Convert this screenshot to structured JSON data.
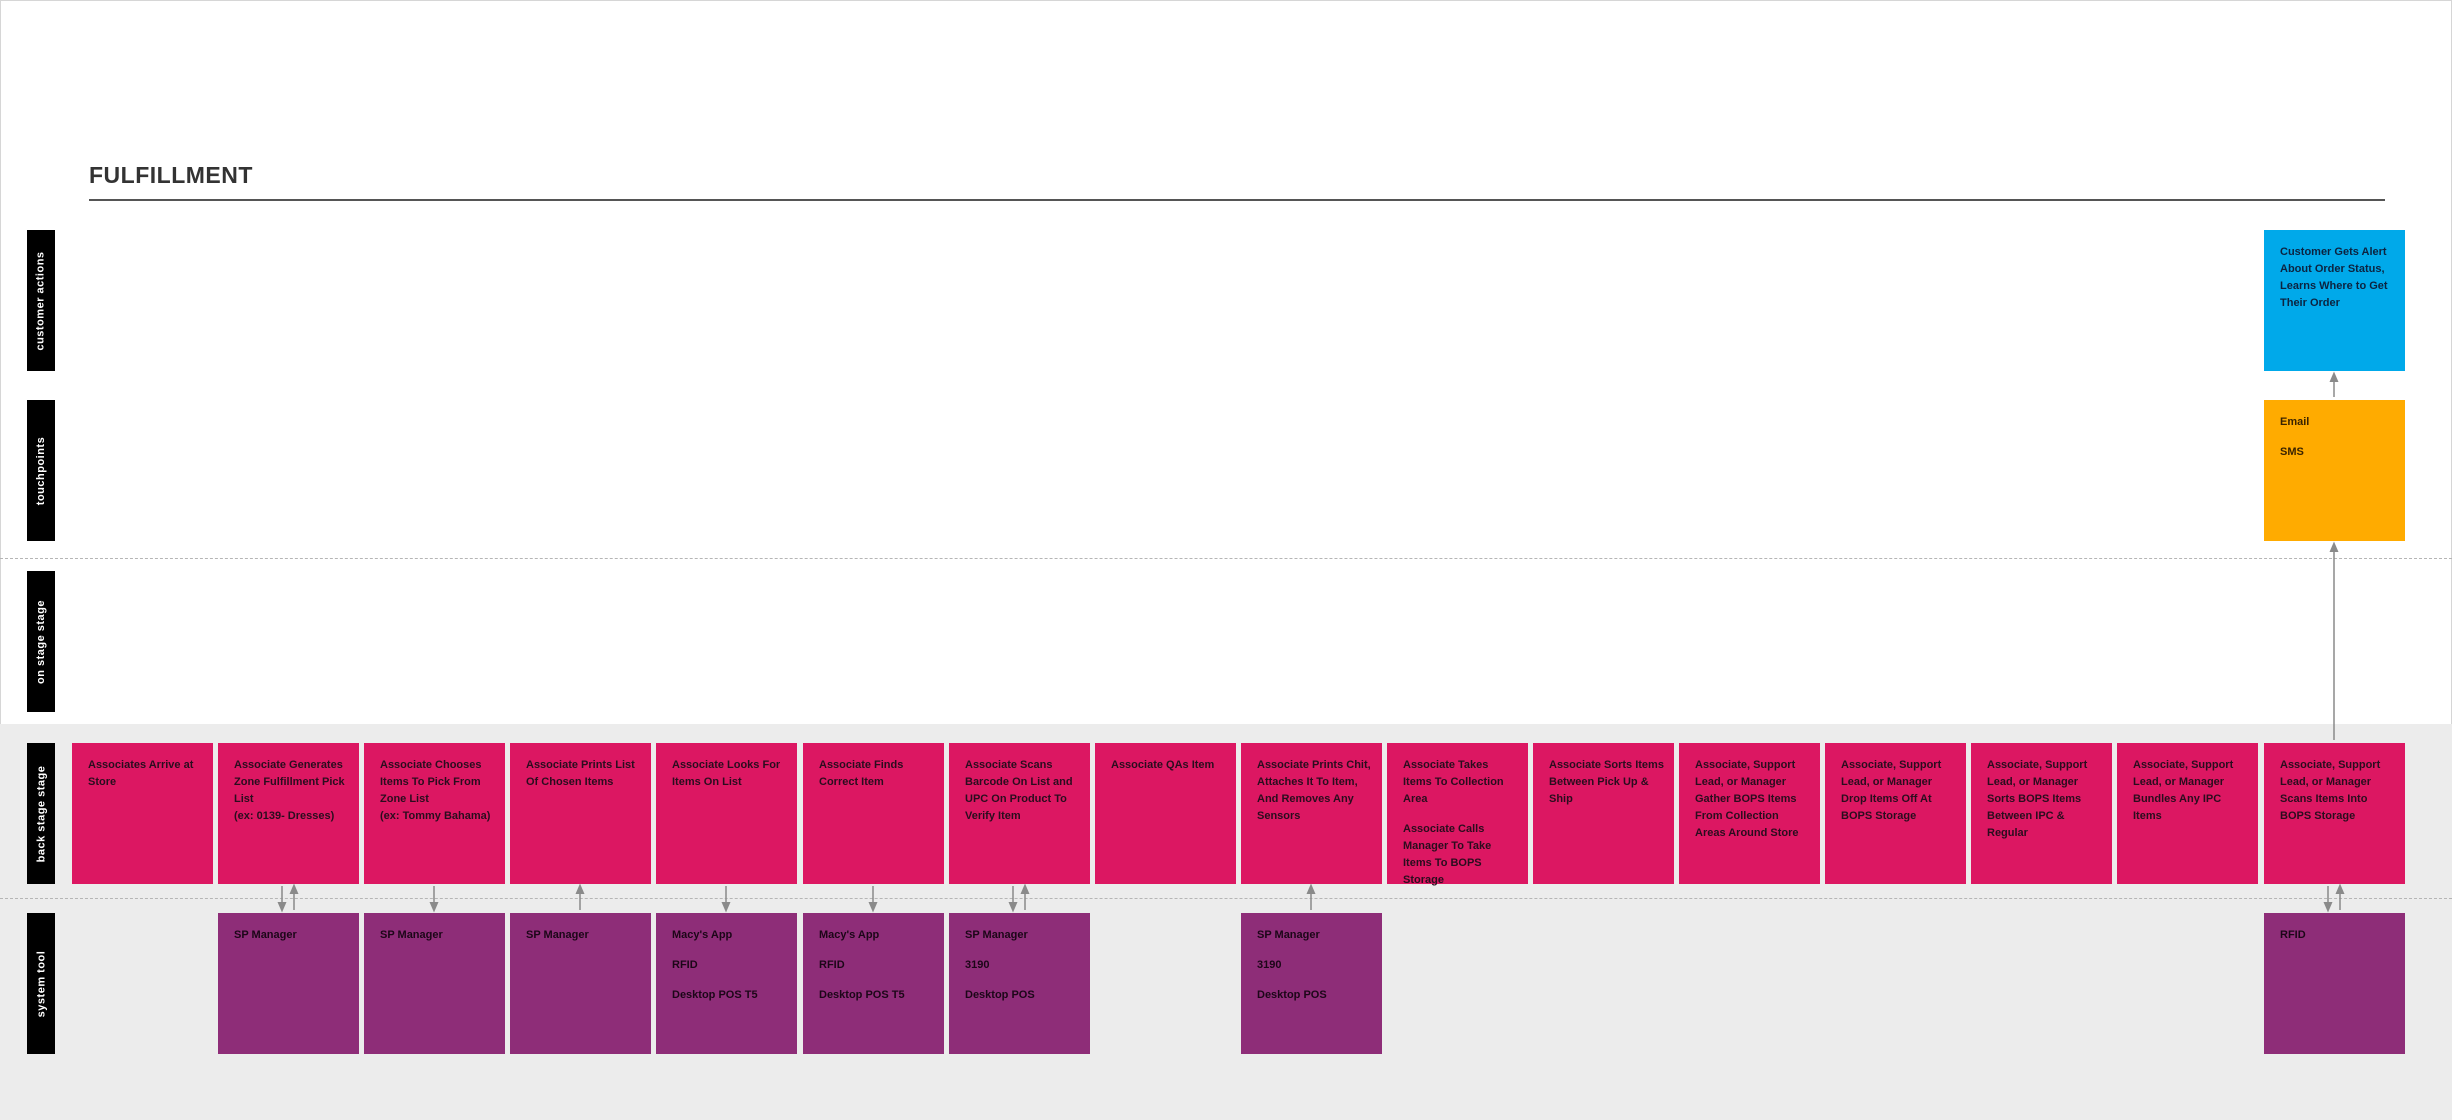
{
  "title": "FULFILLMENT",
  "lanes": [
    "customer actions",
    "touchpoints",
    "on stage stage",
    "back stage stage",
    "system tool"
  ],
  "colors": {
    "back_stage": "#dc1762",
    "system_tool": "#8e2d78",
    "customer_action": "#00a9ea",
    "touchpoint": "#ffab00"
  },
  "customer_actions": [
    {
      "column": 16,
      "lines": [
        "Customer Gets Alert About Order Status, Learns Where to Get Their Order"
      ]
    }
  ],
  "touchpoints": [
    {
      "column": 16,
      "lines": [
        "Email",
        "SMS"
      ]
    }
  ],
  "back_stage": [
    {
      "lines": [
        "Associates Arrive at Store"
      ]
    },
    {
      "lines": [
        "Associate Generates Zone Fulfillment Pick List\n(ex: 0139- Dresses)"
      ]
    },
    {
      "lines": [
        "Associate Chooses Items To Pick From Zone List\n(ex: Tommy Bahama)"
      ]
    },
    {
      "lines": [
        "Associate Prints List Of Chosen Items"
      ]
    },
    {
      "lines": [
        "Associate Looks For Items On List"
      ]
    },
    {
      "lines": [
        "Associate Finds Correct Item"
      ]
    },
    {
      "lines": [
        "Associate Scans Barcode On List and UPC On Product To Verify Item"
      ]
    },
    {
      "lines": [
        "Associate QAs Item"
      ]
    },
    {
      "lines": [
        "Associate Prints Chit, Attaches It To Item, And Removes Any Sensors"
      ]
    },
    {
      "lines": [
        "Associate Takes Items To Collection Area",
        "Associate Calls Manager To Take Items To BOPS Storage"
      ]
    },
    {
      "lines": [
        "Associate Sorts Items Between Pick Up & Ship"
      ]
    },
    {
      "lines": [
        "Associate, Support Lead, or Manager Gather BOPS Items From Collection Areas Around Store"
      ]
    },
    {
      "lines": [
        "Associate, Support Lead, or Manager Drop Items Off At BOPS Storage"
      ]
    },
    {
      "lines": [
        "Associate, Support Lead, or Manager Sorts BOPS Items Between IPC & Regular"
      ]
    },
    {
      "lines": [
        "Associate, Support Lead, or Manager Bundles Any IPC Items"
      ]
    },
    {
      "lines": [
        "Associate, Support Lead, or Manager Scans Items Into BOPS Storage"
      ]
    }
  ],
  "system_tools": [
    {
      "column": 2,
      "arrows": "both",
      "lines": [
        "SP Manager"
      ]
    },
    {
      "column": 3,
      "arrows": "down",
      "lines": [
        "SP Manager"
      ]
    },
    {
      "column": 4,
      "arrows": "up",
      "lines": [
        "SP Manager"
      ]
    },
    {
      "column": 5,
      "arrows": "down",
      "lines": [
        "Macy's App",
        "RFID",
        "Desktop POS T5"
      ]
    },
    {
      "column": 6,
      "arrows": "down",
      "lines": [
        "Macy's App",
        "RFID",
        "Desktop POS T5"
      ]
    },
    {
      "column": 7,
      "arrows": "both",
      "lines": [
        "SP Manager",
        "3190",
        "Desktop POS"
      ]
    },
    {
      "column": 9,
      "arrows": "up",
      "lines": [
        "SP Manager",
        "3190",
        "Desktop POS"
      ]
    },
    {
      "column": 16,
      "arrows": "both",
      "lines": [
        "RFID"
      ]
    }
  ]
}
